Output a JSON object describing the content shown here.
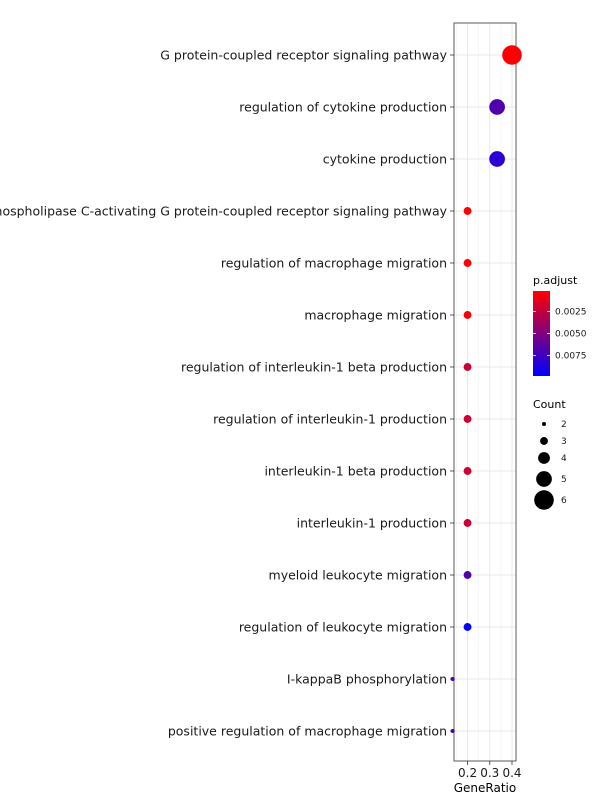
{
  "chart_data": {
    "type": "scatter",
    "title": "",
    "xlabel": "GeneRatio",
    "ylabel": "",
    "xlim": [
      0.139,
      0.418
    ],
    "x_ticks": [
      0.2,
      0.3,
      0.4
    ],
    "x_tick_labels": [
      "0.2",
      "0.3",
      "0.4"
    ],
    "grid": true,
    "categories": [
      "G protein-coupled receptor signaling pathway",
      "regulation of cytokine production",
      "cytokine production",
      "phospholipase C-activating G protein-coupled receptor signaling pathway",
      "regulation of macrophage migration",
      "macrophage migration",
      "regulation of interleukin-1 beta production",
      "regulation of interleukin-1 production",
      "interleukin-1 beta production",
      "interleukin-1 production",
      "myeloid leukocyte migration",
      "regulation of leukocyte migration",
      "I-kappaB phosphorylation",
      "positive regulation of macrophage migration"
    ],
    "points": [
      {
        "term": "G protein-coupled receptor signaling pathway",
        "gene_ratio": 0.4,
        "count": 6,
        "p_adjust": 0.0003
      },
      {
        "term": "regulation of cytokine production",
        "gene_ratio": 0.333,
        "count": 5,
        "p_adjust": 0.0068
      },
      {
        "term": "cytokine production",
        "gene_ratio": 0.333,
        "count": 5,
        "p_adjust": 0.0082
      },
      {
        "term": "phospholipase C-activating G protein-coupled receptor signaling pathway",
        "gene_ratio": 0.2,
        "count": 3,
        "p_adjust": 0.0004
      },
      {
        "term": "regulation of macrophage migration",
        "gene_ratio": 0.2,
        "count": 3,
        "p_adjust": 0.0004
      },
      {
        "term": "macrophage migration",
        "gene_ratio": 0.2,
        "count": 3,
        "p_adjust": 0.0005
      },
      {
        "term": "regulation of interleukin-1 beta production",
        "gene_ratio": 0.2,
        "count": 3,
        "p_adjust": 0.0022
      },
      {
        "term": "regulation of interleukin-1 production",
        "gene_ratio": 0.2,
        "count": 3,
        "p_adjust": 0.0022
      },
      {
        "term": "interleukin-1 beta production",
        "gene_ratio": 0.2,
        "count": 3,
        "p_adjust": 0.0022
      },
      {
        "term": "interleukin-1 production",
        "gene_ratio": 0.2,
        "count": 3,
        "p_adjust": 0.0022
      },
      {
        "term": "myeloid leukocyte migration",
        "gene_ratio": 0.2,
        "count": 3,
        "p_adjust": 0.0068
      },
      {
        "term": "regulation of leukocyte migration",
        "gene_ratio": 0.2,
        "count": 3,
        "p_adjust": 0.0098
      },
      {
        "term": "I-kappaB phosphorylation",
        "gene_ratio": 0.133,
        "count": 2,
        "p_adjust": 0.0068
      },
      {
        "term": "positive regulation of macrophage migration",
        "gene_ratio": 0.133,
        "count": 2,
        "p_adjust": 0.0068
      }
    ],
    "color_legend": {
      "title": "p.adjust",
      "range": [
        0.0002,
        0.0098
      ],
      "ticks": [
        0.0025,
        0.005,
        0.0075
      ],
      "tick_labels": [
        "0.0025",
        "0.0050",
        "0.0075"
      ],
      "low_color": "#ff0000",
      "high_color": "#0000ff"
    },
    "size_legend": {
      "title": "Count",
      "values": [
        2,
        3,
        4,
        5,
        6
      ],
      "labels": [
        "2",
        "3",
        "4",
        "5",
        "6"
      ]
    }
  }
}
